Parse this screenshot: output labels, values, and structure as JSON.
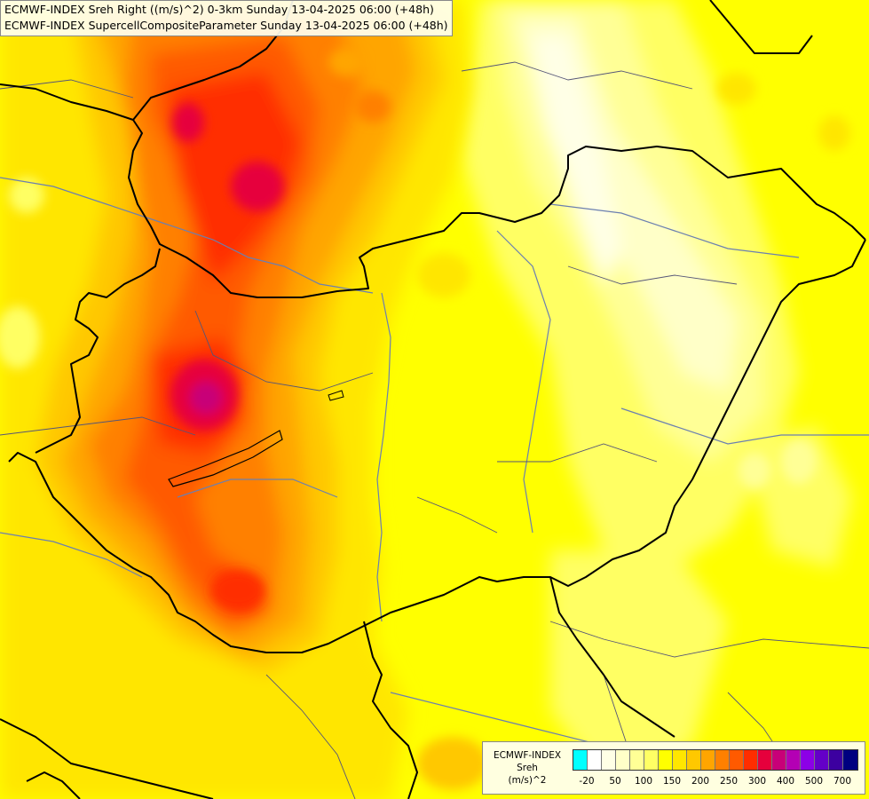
{
  "map": {
    "title_line1": "ECMWF-INDEX Sreh Right ((m/s)^2) 0-3km Sunday 13-04-2025 06:00 (+48h)",
    "title_line2": "ECMWF-INDEX SupercellCompositeParameter Sunday 13-04-2025 06:00 (+48h)"
  },
  "legend": {
    "line1": "ECMWF-INDEX",
    "line2": "Sreh",
    "line3": "(m/s)^2",
    "colors": [
      "#00ffff",
      "#ffffff",
      "#ffffe6",
      "#ffffc8",
      "#ffff96",
      "#ffff64",
      "#ffff00",
      "#ffe600",
      "#ffc800",
      "#ffa500",
      "#ff8000",
      "#ff5a00",
      "#ff2d00",
      "#e6003c",
      "#c80078",
      "#b400b4",
      "#8c00e6",
      "#6400c8",
      "#3c00a0",
      "#000080"
    ],
    "ticks": [
      "-20",
      "50",
      "100",
      "150",
      "200",
      "250",
      "300",
      "400",
      "500",
      "700"
    ]
  },
  "colors": {
    "background": "#ffff00",
    "border_country": "#000000",
    "border_region": "#555577",
    "river": "#6b7fb0"
  }
}
